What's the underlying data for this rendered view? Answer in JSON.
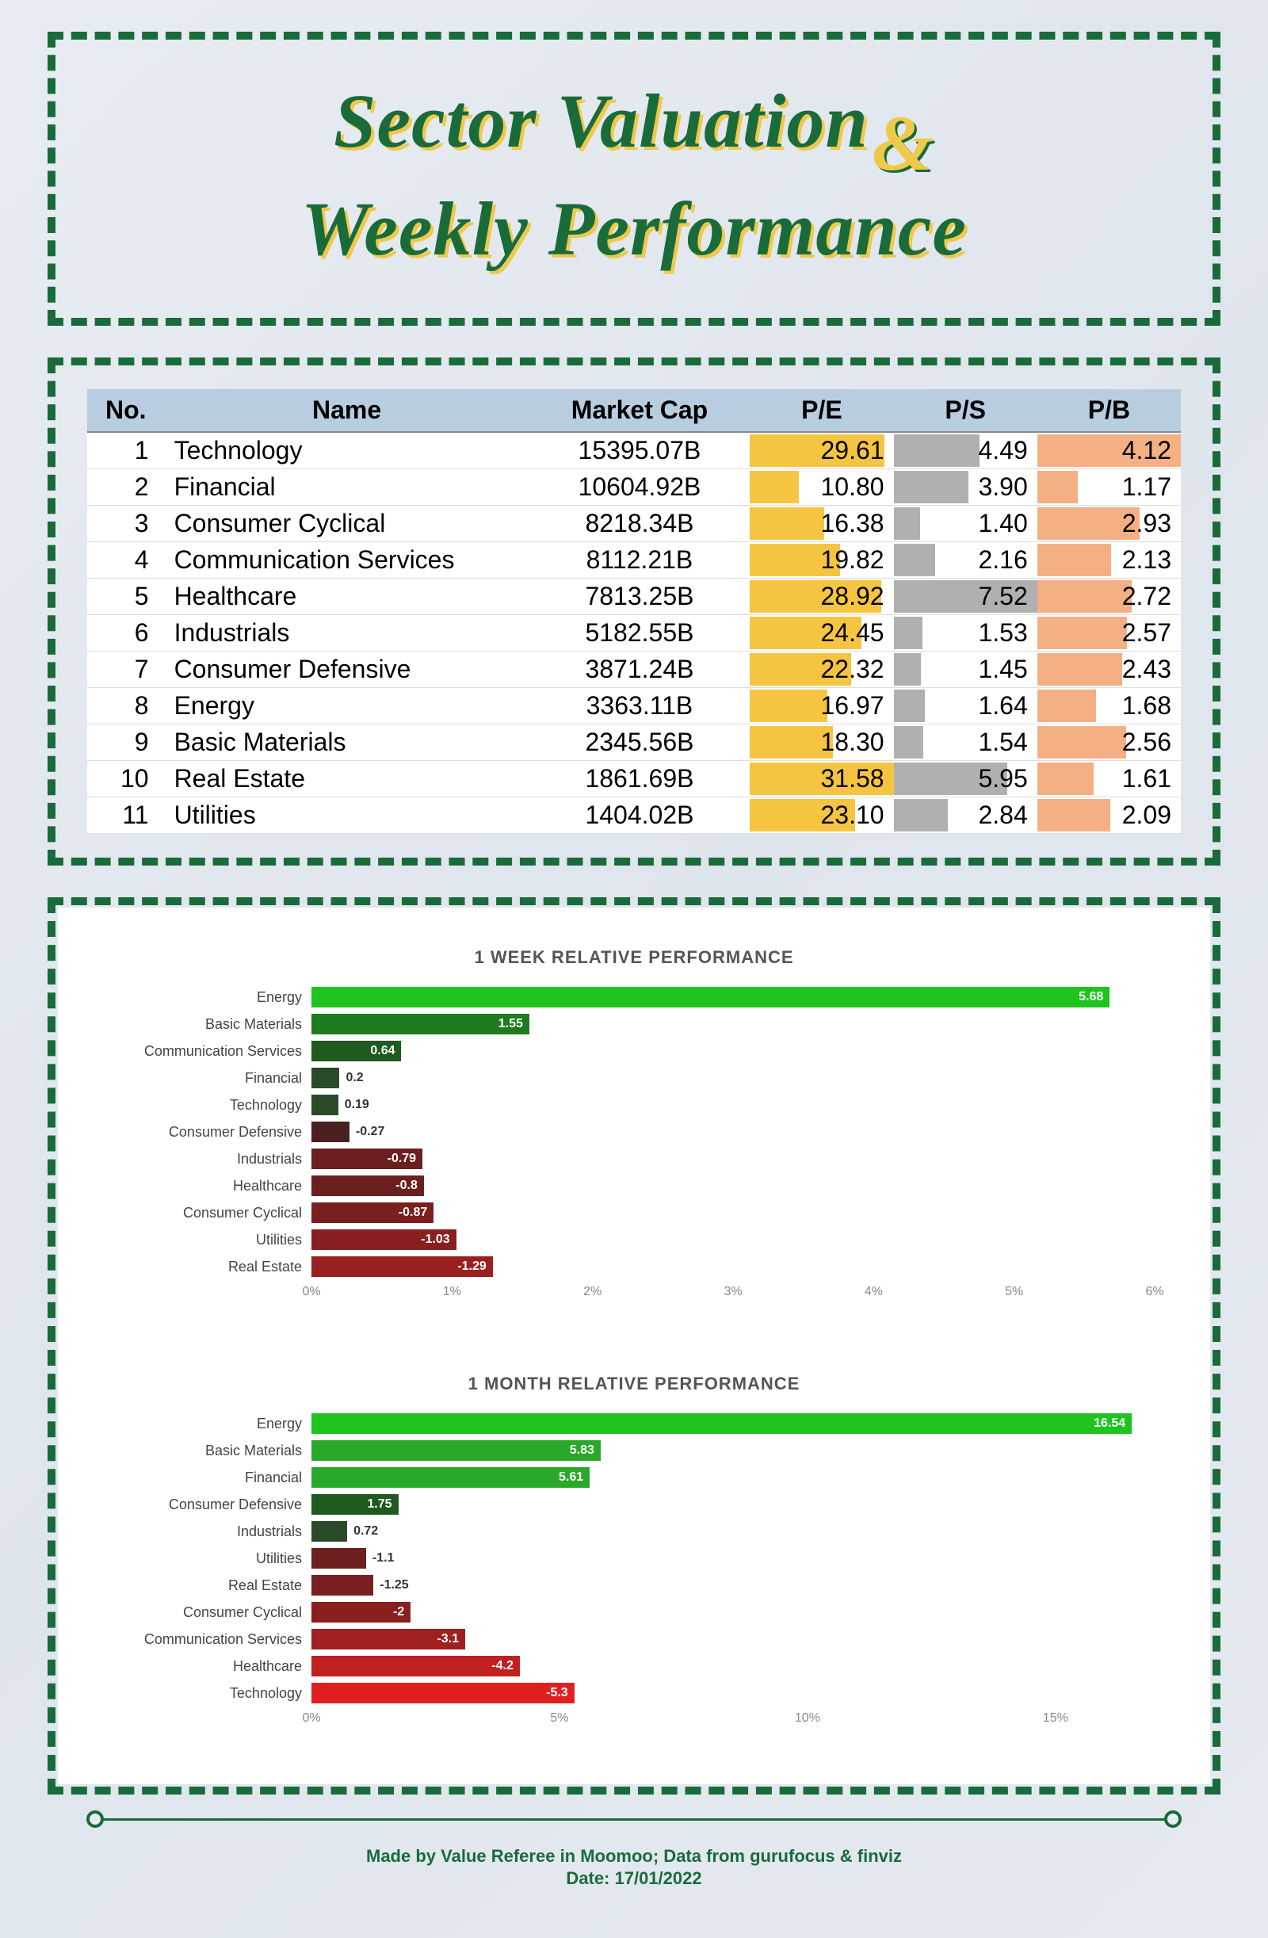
{
  "title": {
    "line1": "Sector Valuation",
    "line2": "Weekly Performance",
    "ampersand": "&"
  },
  "table": {
    "columns": [
      "No.",
      "Name",
      "Market Cap",
      "P/E",
      "P/S",
      "P/B"
    ],
    "pe_max": 31.58,
    "ps_max": 7.52,
    "pb_max": 4.12,
    "pe_bar_color": "#f5c542",
    "ps_bar_color": "#b0b0b0",
    "pb_bar_color": "#f4b084",
    "header_bg": "#b8cde0",
    "rows": [
      {
        "no": "1",
        "name": "Technology",
        "mcap": "15395.07B",
        "pe": "29.61",
        "ps": "4.49",
        "pb": "4.12",
        "pe_v": 29.61,
        "ps_v": 4.49,
        "pb_v": 4.12
      },
      {
        "no": "2",
        "name": "Financial",
        "mcap": "10604.92B",
        "pe": "10.80",
        "ps": "3.90",
        "pb": "1.17",
        "pe_v": 10.8,
        "ps_v": 3.9,
        "pb_v": 1.17
      },
      {
        "no": "3",
        "name": "Consumer Cyclical",
        "mcap": "8218.34B",
        "pe": "16.38",
        "ps": "1.40",
        "pb": "2.93",
        "pe_v": 16.38,
        "ps_v": 1.4,
        "pb_v": 2.93
      },
      {
        "no": "4",
        "name": "Communication Services",
        "mcap": "8112.21B",
        "pe": "19.82",
        "ps": "2.16",
        "pb": "2.13",
        "pe_v": 19.82,
        "ps_v": 2.16,
        "pb_v": 2.13
      },
      {
        "no": "5",
        "name": "Healthcare",
        "mcap": "7813.25B",
        "pe": "28.92",
        "ps": "7.52",
        "pb": "2.72",
        "pe_v": 28.92,
        "ps_v": 7.52,
        "pb_v": 2.72
      },
      {
        "no": "6",
        "name": "Industrials",
        "mcap": "5182.55B",
        "pe": "24.45",
        "ps": "1.53",
        "pb": "2.57",
        "pe_v": 24.45,
        "ps_v": 1.53,
        "pb_v": 2.57
      },
      {
        "no": "7",
        "name": "Consumer Defensive",
        "mcap": "3871.24B",
        "pe": "22.32",
        "ps": "1.45",
        "pb": "2.43",
        "pe_v": 22.32,
        "ps_v": 1.45,
        "pb_v": 2.43
      },
      {
        "no": "8",
        "name": "Energy",
        "mcap": "3363.11B",
        "pe": "16.97",
        "ps": "1.64",
        "pb": "1.68",
        "pe_v": 16.97,
        "ps_v": 1.64,
        "pb_v": 1.68
      },
      {
        "no": "9",
        "name": "Basic Materials",
        "mcap": "2345.56B",
        "pe": "18.30",
        "ps": "1.54",
        "pb": "2.56",
        "pe_v": 18.3,
        "ps_v": 1.54,
        "pb_v": 2.56
      },
      {
        "no": "10",
        "name": "Real Estate",
        "mcap": "1861.69B",
        "pe": "31.58",
        "ps": "5.95",
        "pb": "1.61",
        "pe_v": 31.58,
        "ps_v": 5.95,
        "pb_v": 1.61
      },
      {
        "no": "11",
        "name": "Utilities",
        "mcap": "1404.02B",
        "pe": "23.10",
        "ps": "2.84",
        "pb": "2.09",
        "pe_v": 23.1,
        "ps_v": 2.84,
        "pb_v": 2.09
      }
    ]
  },
  "chart_week": {
    "title": "1 WEEK RELATIVE PERFORMANCE",
    "type": "bar",
    "xmin": 0,
    "xmax": 6,
    "xtick_step": 1,
    "xtick_suffix": "%",
    "label_fontsize": 18,
    "value_fontsize": 16,
    "grid_color": "#e5e5e5",
    "items": [
      {
        "label": "Energy",
        "value": 5.68,
        "display": "5.68",
        "color": "#1fc41f"
      },
      {
        "label": "Basic Materials",
        "value": 1.55,
        "display": "1.55",
        "color": "#1f7a1f"
      },
      {
        "label": "Communication Services",
        "value": 0.64,
        "display": "0.64",
        "color": "#1f5a1f"
      },
      {
        "label": "Financial",
        "value": 0.2,
        "display": "0.2",
        "color": "#2a4a2a"
      },
      {
        "label": "Technology",
        "value": 0.19,
        "display": "0.19",
        "color": "#2a4a2a"
      },
      {
        "label": "Consumer Defensive",
        "value": 0.27,
        "display": "-0.27",
        "color": "#4a2020"
      },
      {
        "label": "Industrials",
        "value": 0.79,
        "display": "-0.79",
        "color": "#6b1f1f"
      },
      {
        "label": "Healthcare",
        "value": 0.8,
        "display": "-0.8",
        "color": "#6b1f1f"
      },
      {
        "label": "Consumer Cyclical",
        "value": 0.87,
        "display": "-0.87",
        "color": "#7a1f1f"
      },
      {
        "label": "Utilities",
        "value": 1.03,
        "display": "-1.03",
        "color": "#8a1f1f"
      },
      {
        "label": "Real Estate",
        "value": 1.29,
        "display": "-1.29",
        "color": "#9a1f1f"
      }
    ]
  },
  "chart_month": {
    "title": "1 MONTH RELATIVE PERFORMANCE",
    "type": "bar",
    "xmin": 0,
    "xmax": 17,
    "xtick_step": 5,
    "xtick_suffix": "%",
    "label_fontsize": 18,
    "value_fontsize": 16,
    "grid_color": "#e5e5e5",
    "items": [
      {
        "label": "Energy",
        "value": 16.54,
        "display": "16.54",
        "color": "#1fc41f"
      },
      {
        "label": "Basic Materials",
        "value": 5.83,
        "display": "5.83",
        "color": "#2aa82a"
      },
      {
        "label": "Financial",
        "value": 5.61,
        "display": "5.61",
        "color": "#2aa82a"
      },
      {
        "label": "Consumer Defensive",
        "value": 1.75,
        "display": "1.75",
        "color": "#1f5a1f"
      },
      {
        "label": "Industrials",
        "value": 0.72,
        "display": "0.72",
        "color": "#2a4a2a"
      },
      {
        "label": "Utilities",
        "value": 1.1,
        "display": "-1.1",
        "color": "#6b1f1f"
      },
      {
        "label": "Real Estate",
        "value": 1.25,
        "display": "-1.25",
        "color": "#7a1f1f"
      },
      {
        "label": "Consumer Cyclical",
        "value": 2,
        "display": "-2",
        "color": "#8a1f1f"
      },
      {
        "label": "Communication Services",
        "value": 3.1,
        "display": "-3.1",
        "color": "#a01f1f"
      },
      {
        "label": "Healthcare",
        "value": 4.2,
        "display": "-4.2",
        "color": "#c02020"
      },
      {
        "label": "Technology",
        "value": 5.3,
        "display": "-5.3",
        "color": "#e02020"
      }
    ]
  },
  "footer": {
    "made_by_prefix": "Made by ",
    "author": "Value Referee",
    "mid1": " in Moomoo; Data from ",
    "sources": "gurufocus & finviz",
    "date_label": "Date: ",
    "date": "17/01/2022"
  }
}
